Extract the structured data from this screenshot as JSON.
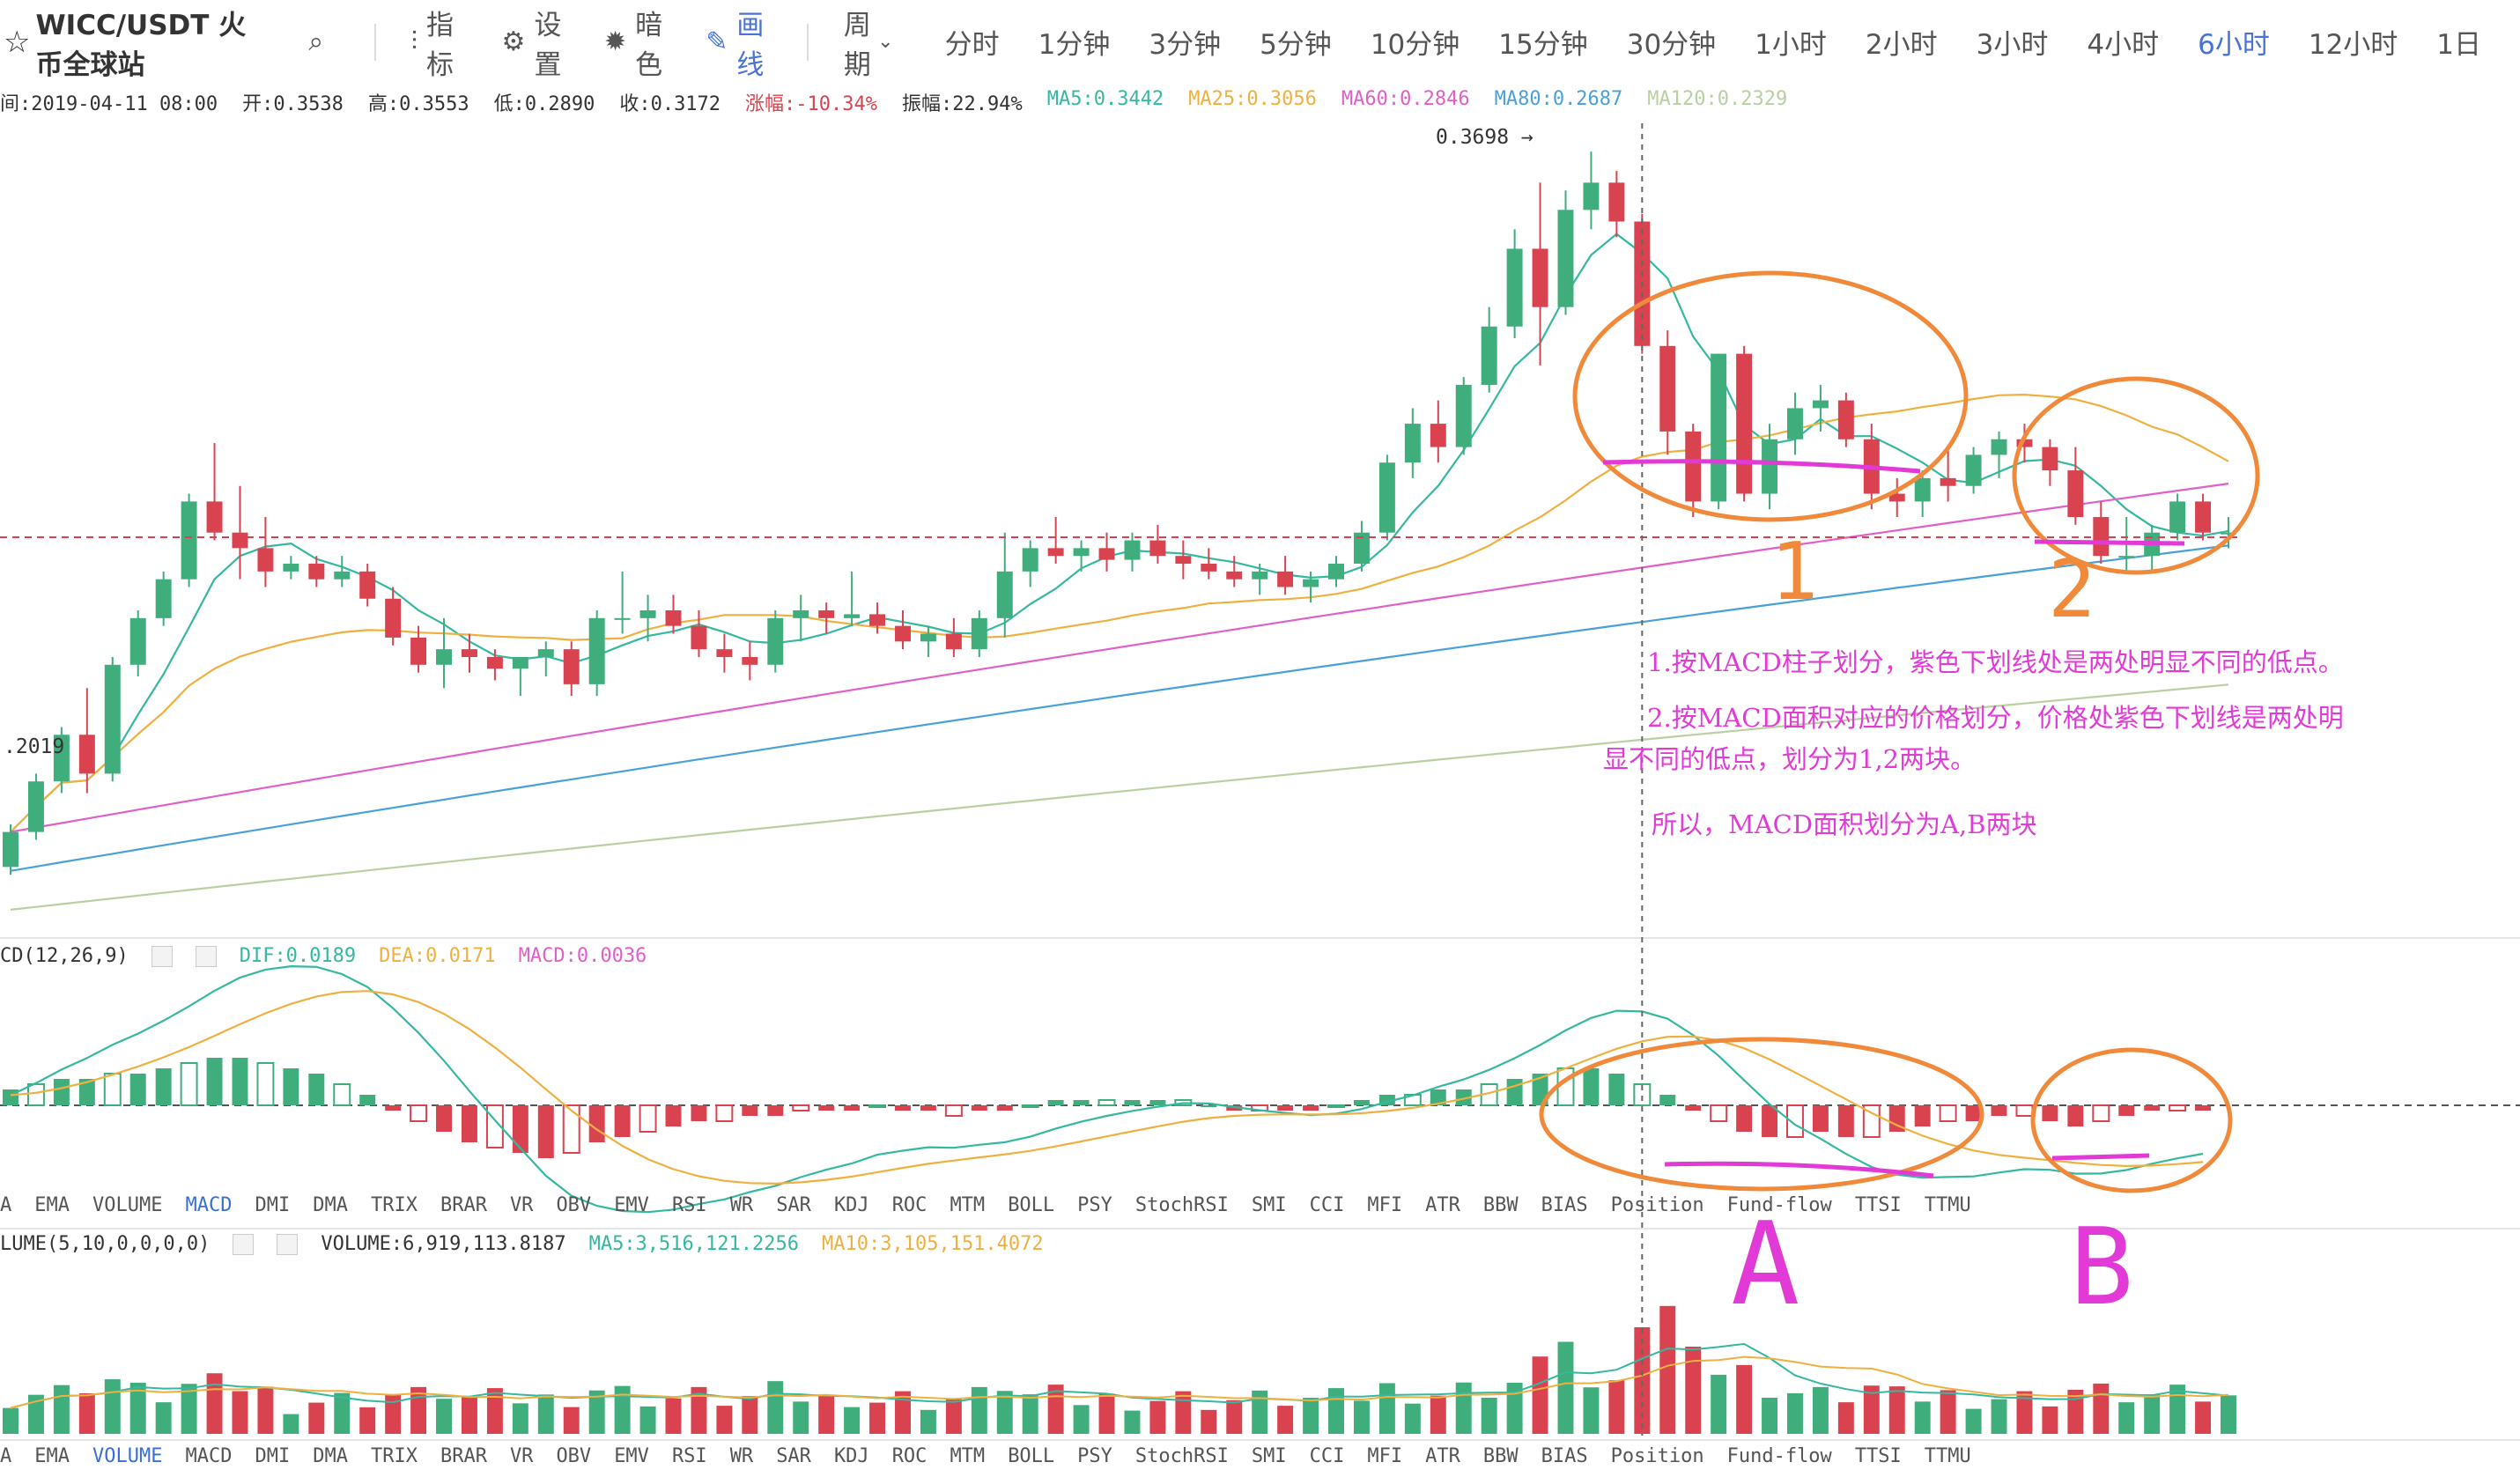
{
  "toolbar": {
    "pair_title": "WICC/USDT 火币全球站",
    "indicator_label": "指标",
    "settings_label": "设置",
    "theme_label": "暗色",
    "draw_label": "画线",
    "period_label": "周期",
    "periods": [
      "分时",
      "1分钟",
      "3分钟",
      "5分钟",
      "10分钟",
      "15分钟",
      "30分钟",
      "1小时",
      "2小时",
      "3小时",
      "4小时",
      "6小时",
      "12小时",
      "1日"
    ],
    "active_period": "6小时"
  },
  "info": {
    "time": "间:2019-04-11 08:00",
    "open": "开:0.3538",
    "high": "高:0.3553",
    "low": "低:0.2890",
    "close": "收:0.3172",
    "change": "涨幅:-10.34%",
    "amplitude": "振幅:22.94%",
    "ma5": "MA5:0.3442",
    "ma25": "MA25:0.3056",
    "ma60": "MA60:0.2846",
    "ma80": "MA80:0.2687",
    "ma120": "MA120:0.2329"
  },
  "price_panel": {
    "peak_label": "0.3698 →",
    "date_label": ".2019"
  },
  "macd_header": {
    "name": "CD(12,26,9)",
    "dif": "DIF:0.0189",
    "dea": "DEA:0.0171",
    "macd": "MACD:0.0036"
  },
  "volume_header": {
    "name": "LUME(5,10,0,0,0,0)",
    "volume": "VOLUME:6,919,113.8187",
    "ma5": "MA5:3,516,121.2256",
    "ma10": "MA10:3,105,151.4072"
  },
  "tabs_macd": [
    "A",
    "EMA",
    "VOLUME",
    "MACD",
    "DMI",
    "DMA",
    "TRIX",
    "BRAR",
    "VR",
    "OBV",
    "EMV",
    "RSI",
    "WR",
    "SAR",
    "KDJ",
    "ROC",
    "MTM",
    "BOLL",
    "PSY",
    "StochRSI",
    "SMI",
    "CCI",
    "MFI",
    "ATR",
    "BBW",
    "BIAS",
    "Position",
    "Fund-flow",
    "TTSI",
    "TTMU"
  ],
  "tabs_macd_active": "MACD",
  "tabs_volume": [
    "A",
    "EMA",
    "VOLUME",
    "MACD",
    "DMI",
    "DMA",
    "TRIX",
    "BRAR",
    "VR",
    "OBV",
    "EMV",
    "RSI",
    "WR",
    "SAR",
    "KDJ",
    "ROC",
    "MTM",
    "BOLL",
    "PSY",
    "StochRSI",
    "SMI",
    "CCI",
    "MFI",
    "ATR",
    "BBW",
    "BIAS",
    "Position",
    "Fund-flow",
    "TTSI",
    "TTMU"
  ],
  "tabs_volume_active": "VOLUME",
  "annotations": {
    "note1": "1.按MACD柱子划分，紫色下划线处是两处明显不同的低点。",
    "note2_line1": "2.按MACD面积对应的价格划分，价格处紫色下划线是两处明",
    "note2_line2": "显不同的低点，划分为1,2两块。",
    "note3": "所以，MACD面积划分为A,B两块",
    "label_1": "1",
    "label_2": "2",
    "label_A": "A",
    "label_B": "B"
  },
  "colors": {
    "up": "#3fae7c",
    "down": "#d9434f",
    "ma5": "#35b8a0",
    "ma25": "#f0b040",
    "ma60": "#e060c8",
    "ma80": "#4aa0d8",
    "ma120": "#b9d0a0",
    "annotation_orange": "#f08a3a",
    "annotation_purple": "#e23ad6",
    "active_blue": "#4a72d8"
  },
  "chart_data": [
    {
      "type": "candlestick",
      "title": "WICC/USDT 6小时",
      "ohlc": [
        [
          0.186,
          0.197,
          0.184,
          0.195
        ],
        [
          0.195,
          0.21,
          0.193,
          0.208
        ],
        [
          0.208,
          0.222,
          0.205,
          0.22
        ],
        [
          0.22,
          0.232,
          0.205,
          0.21
        ],
        [
          0.21,
          0.24,
          0.208,
          0.238
        ],
        [
          0.238,
          0.252,
          0.235,
          0.25
        ],
        [
          0.25,
          0.262,
          0.248,
          0.26
        ],
        [
          0.26,
          0.282,
          0.258,
          0.28
        ],
        [
          0.28,
          0.295,
          0.27,
          0.272
        ],
        [
          0.272,
          0.284,
          0.26,
          0.268
        ],
        [
          0.268,
          0.276,
          0.258,
          0.262
        ],
        [
          0.262,
          0.266,
          0.26,
          0.264
        ],
        [
          0.264,
          0.266,
          0.258,
          0.26
        ],
        [
          0.26,
          0.266,
          0.258,
          0.262
        ],
        [
          0.262,
          0.264,
          0.253,
          0.255
        ],
        [
          0.255,
          0.258,
          0.243,
          0.245
        ],
        [
          0.245,
          0.248,
          0.236,
          0.238
        ],
        [
          0.238,
          0.25,
          0.232,
          0.242
        ],
        [
          0.242,
          0.246,
          0.236,
          0.24
        ],
        [
          0.24,
          0.242,
          0.234,
          0.237
        ],
        [
          0.237,
          0.24,
          0.23,
          0.24
        ],
        [
          0.24,
          0.244,
          0.235,
          0.242
        ],
        [
          0.242,
          0.244,
          0.23,
          0.233
        ],
        [
          0.233,
          0.252,
          0.23,
          0.25
        ],
        [
          0.25,
          0.262,
          0.246,
          0.25
        ],
        [
          0.25,
          0.256,
          0.244,
          0.252
        ],
        [
          0.252,
          0.256,
          0.246,
          0.248
        ],
        [
          0.248,
          0.252,
          0.24,
          0.242
        ],
        [
          0.242,
          0.246,
          0.236,
          0.24
        ],
        [
          0.24,
          0.244,
          0.234,
          0.238
        ],
        [
          0.238,
          0.252,
          0.236,
          0.25
        ],
        [
          0.25,
          0.256,
          0.244,
          0.252
        ],
        [
          0.252,
          0.254,
          0.246,
          0.25
        ],
        [
          0.25,
          0.262,
          0.248,
          0.251
        ],
        [
          0.251,
          0.254,
          0.246,
          0.248
        ],
        [
          0.248,
          0.252,
          0.242,
          0.244
        ],
        [
          0.244,
          0.248,
          0.24,
          0.246
        ],
        [
          0.246,
          0.25,
          0.24,
          0.242
        ],
        [
          0.242,
          0.252,
          0.24,
          0.25
        ],
        [
          0.25,
          0.272,
          0.245,
          0.262
        ],
        [
          0.262,
          0.27,
          0.258,
          0.268
        ],
        [
          0.268,
          0.276,
          0.264,
          0.266
        ],
        [
          0.266,
          0.27,
          0.262,
          0.268
        ],
        [
          0.268,
          0.272,
          0.262,
          0.265
        ],
        [
          0.265,
          0.272,
          0.262,
          0.27
        ],
        [
          0.27,
          0.274,
          0.264,
          0.266
        ],
        [
          0.266,
          0.27,
          0.26,
          0.264
        ],
        [
          0.264,
          0.268,
          0.26,
          0.262
        ],
        [
          0.262,
          0.266,
          0.258,
          0.26
        ],
        [
          0.26,
          0.264,
          0.256,
          0.262
        ],
        [
          0.262,
          0.266,
          0.256,
          0.258
        ],
        [
          0.258,
          0.262,
          0.254,
          0.26
        ],
        [
          0.26,
          0.266,
          0.258,
          0.264
        ],
        [
          0.264,
          0.275,
          0.262,
          0.272
        ],
        [
          0.272,
          0.292,
          0.27,
          0.29
        ],
        [
          0.29,
          0.304,
          0.286,
          0.3
        ],
        [
          0.3,
          0.306,
          0.29,
          0.294
        ],
        [
          0.294,
          0.312,
          0.292,
          0.31
        ],
        [
          0.31,
          0.33,
          0.308,
          0.325
        ],
        [
          0.325,
          0.35,
          0.322,
          0.345
        ],
        [
          0.345,
          0.362,
          0.315,
          0.33
        ],
        [
          0.33,
          0.36,
          0.328,
          0.355
        ],
        [
          0.355,
          0.37,
          0.35,
          0.362
        ],
        [
          0.362,
          0.365,
          0.348,
          0.352
        ],
        [
          0.352,
          0.354,
          0.318,
          0.32
        ],
        [
          0.32,
          0.324,
          0.292,
          0.298
        ],
        [
          0.298,
          0.3,
          0.276,
          0.28
        ],
        [
          0.28,
          0.318,
          0.278,
          0.318
        ],
        [
          0.318,
          0.32,
          0.28,
          0.282
        ],
        [
          0.282,
          0.3,
          0.278,
          0.296
        ],
        [
          0.296,
          0.308,
          0.292,
          0.304
        ],
        [
          0.304,
          0.31,
          0.298,
          0.306
        ],
        [
          0.306,
          0.308,
          0.294,
          0.296
        ],
        [
          0.296,
          0.3,
          0.278,
          0.282
        ],
        [
          0.282,
          0.286,
          0.276,
          0.28
        ],
        [
          0.28,
          0.288,
          0.276,
          0.286
        ],
        [
          0.286,
          0.294,
          0.28,
          0.284
        ],
        [
          0.284,
          0.294,
          0.282,
          0.292
        ],
        [
          0.292,
          0.298,
          0.286,
          0.296
        ],
        [
          0.296,
          0.3,
          0.29,
          0.294
        ],
        [
          0.294,
          0.296,
          0.284,
          0.288
        ],
        [
          0.288,
          0.294,
          0.274,
          0.276
        ],
        [
          0.276,
          0.28,
          0.264,
          0.266
        ],
        [
          0.266,
          0.276,
          0.262,
          0.266
        ],
        [
          0.266,
          0.274,
          0.262,
          0.272
        ],
        [
          0.272,
          0.282,
          0.27,
          0.28
        ],
        [
          0.28,
          0.282,
          0.27,
          0.272
        ],
        [
          0.272,
          0.276,
          0.268,
          0.272
        ]
      ],
      "ylim": [
        0.17,
        0.375
      ],
      "peak_value": 0.3698,
      "moving_averages": [
        {
          "name": "MA5",
          "value": 0.3442
        },
        {
          "name": "MA25",
          "value": 0.3056
        },
        {
          "name": "MA60",
          "value": 0.2846
        },
        {
          "name": "MA80",
          "value": 0.2687
        },
        {
          "name": "MA120",
          "value": 0.2329
        }
      ]
    },
    {
      "type": "bar",
      "title": "MACD(12,26,9)",
      "values": [
        0.003,
        0.004,
        0.005,
        0.005,
        0.006,
        0.006,
        0.007,
        0.008,
        0.009,
        0.009,
        0.008,
        0.007,
        0.006,
        0.004,
        0.002,
        -0.001,
        -0.003,
        -0.005,
        -0.007,
        -0.008,
        -0.009,
        -0.01,
        -0.009,
        -0.007,
        -0.006,
        -0.005,
        -0.004,
        -0.003,
        -0.003,
        -0.002,
        -0.002,
        -0.001,
        -0.001,
        -0.001,
        0.0,
        -0.001,
        -0.001,
        -0.002,
        -0.001,
        -0.001,
        0.0,
        0.001,
        0.001,
        0.001,
        0.001,
        0.001,
        0.001,
        0.0,
        -0.001,
        -0.001,
        -0.001,
        -0.001,
        0.0,
        0.001,
        0.002,
        0.002,
        0.003,
        0.003,
        0.004,
        0.005,
        0.006,
        0.007,
        0.007,
        0.006,
        0.004,
        0.002,
        -0.001,
        -0.003,
        -0.005,
        -0.006,
        -0.006,
        -0.005,
        -0.006,
        -0.006,
        -0.005,
        -0.004,
        -0.003,
        -0.003,
        -0.002,
        -0.002,
        -0.003,
        -0.004,
        -0.003,
        -0.002,
        -0.001,
        -0.001,
        -0.001
      ],
      "dif": 0.0189,
      "dea": 0.0171,
      "macd": 0.0036
    },
    {
      "type": "bar",
      "title": "VOLUME(5,10,0,0,0,0)",
      "volume": 6919113.8187,
      "ma5": 3516121.2256,
      "ma10": 3105151.4072
    }
  ]
}
